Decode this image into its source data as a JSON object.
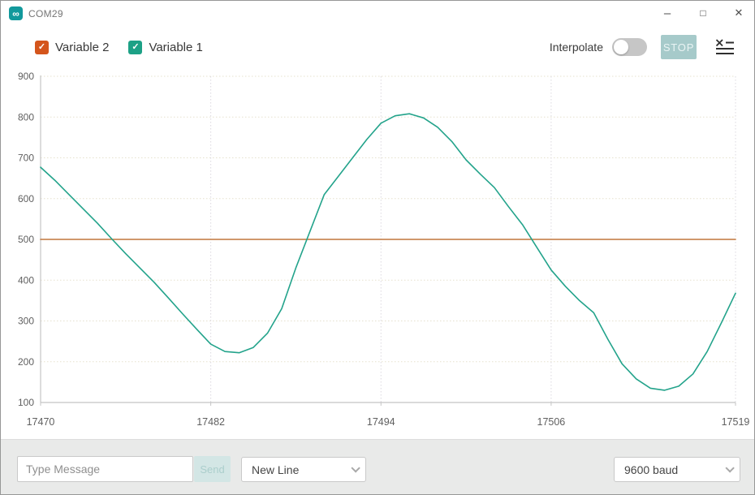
{
  "window": {
    "title": "COM29",
    "icon_glyph": "∞",
    "minimize_glyph": "–",
    "maximize_glyph": "□",
    "close_glyph": "✕"
  },
  "toolbar": {
    "legend": [
      {
        "label": "Variable 2",
        "checked": true,
        "checkbox_color": "#d4551c",
        "check_glyph": "✓"
      },
      {
        "label": "Variable 1",
        "checked": true,
        "checkbox_color": "#1da186",
        "check_glyph": "✓"
      }
    ],
    "interpolate_label": "Interpolate",
    "interpolate_on": false,
    "stop_label": "STOP"
  },
  "message_bar": {
    "input_placeholder": "Type Message",
    "send_label": "Send",
    "line_ending_value": "New Line",
    "baud_value": "9600 baud"
  },
  "colors": {
    "brand_teal": "#12999c",
    "stop_bg": "#a6caca",
    "send_bg": "#d3e6e5",
    "toggle_bg": "#c6c6c6",
    "axis": "#c4c4c4",
    "grid_h": "#e6e1ce",
    "grid_v": "#dbd8df",
    "tick_text": "#5f5f5f"
  },
  "chart_data": {
    "type": "line",
    "title": "",
    "xlabel": "",
    "ylabel": "",
    "xlim": [
      17470,
      17519
    ],
    "ylim": [
      100,
      900
    ],
    "xticks": [
      17470,
      17482,
      17494,
      17506,
      17519
    ],
    "yticks": [
      100,
      200,
      300,
      400,
      500,
      600,
      700,
      800,
      900
    ],
    "grid": true,
    "legend_position": "top-left",
    "interpolation": "linear",
    "x": [
      17470,
      17471,
      17472,
      17473,
      17474,
      17475,
      17476,
      17477,
      17478,
      17479,
      17480,
      17481,
      17482,
      17483,
      17484,
      17485,
      17486,
      17487,
      17488,
      17489,
      17490,
      17491,
      17492,
      17493,
      17494,
      17495,
      17496,
      17497,
      17498,
      17499,
      17500,
      17501,
      17502,
      17503,
      17504,
      17505,
      17506,
      17507,
      17508,
      17509,
      17510,
      17511,
      17512,
      17513,
      17514,
      17515,
      17516,
      17517,
      17518,
      17519
    ],
    "series": [
      {
        "name": "Variable 2",
        "color": "#c0763c",
        "values": [
          500,
          500,
          500,
          500,
          500,
          500,
          500,
          500,
          500,
          500,
          500,
          500,
          500,
          500,
          500,
          500,
          500,
          500,
          500,
          500,
          500,
          500,
          500,
          500,
          500,
          500,
          500,
          500,
          500,
          500,
          500,
          500,
          500,
          500,
          500,
          500,
          500,
          500,
          500,
          500,
          500,
          500,
          500,
          500,
          500,
          500,
          500,
          500,
          500,
          500
        ]
      },
      {
        "name": "Variable 1",
        "color": "#23a38b",
        "values": [
          677,
          645,
          610,
          575,
          540,
          502,
          465,
          430,
          395,
          357,
          318,
          280,
          243,
          225,
          222,
          235,
          270,
          330,
          430,
          520,
          610,
          655,
          700,
          745,
          785,
          803,
          808,
          798,
          775,
          740,
          695,
          660,
          627,
          580,
          535,
          480,
          425,
          385,
          350,
          320,
          255,
          195,
          158,
          135,
          130,
          140,
          170,
          225,
          295,
          368
        ]
      }
    ]
  }
}
